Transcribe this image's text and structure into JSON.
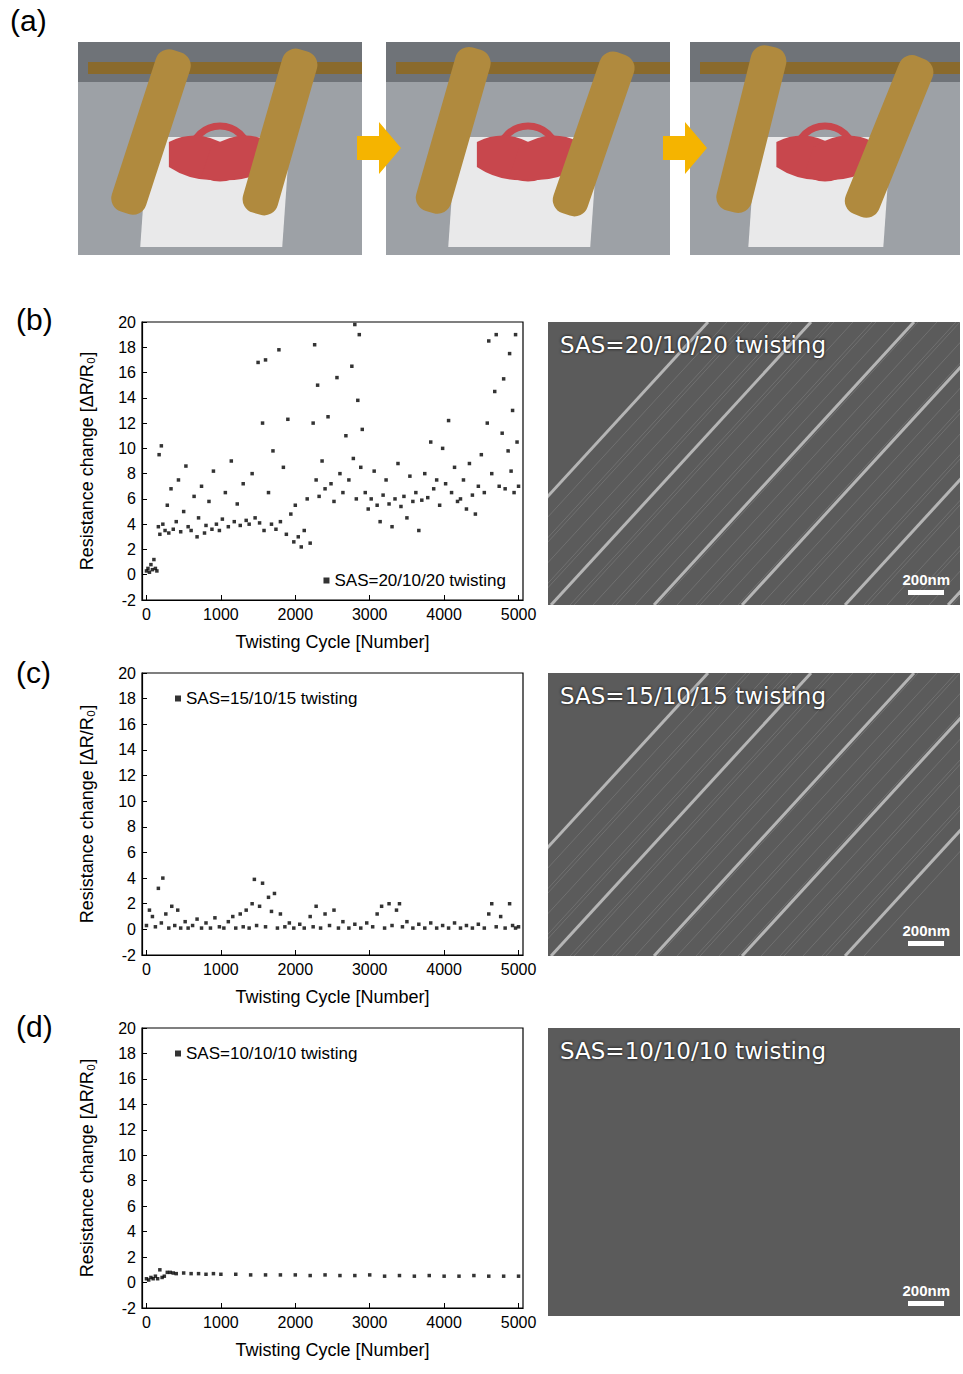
{
  "panel_labels": [
    "(a)",
    "(b)",
    "(c)",
    "(d)"
  ],
  "sem_images": [
    {
      "caption": "SAS=20/10/20 twisting",
      "scale_bar": "200nm"
    },
    {
      "caption": "SAS=15/10/15 twisting",
      "scale_bar": "200nm"
    },
    {
      "caption": "SAS=10/10/10 twisting",
      "scale_bar": "200nm"
    }
  ],
  "chart_data": [
    {
      "type": "scatter",
      "x_label": "Twisting Cycle [Number]",
      "y_label": "Resistance change [ΔR/R₀]",
      "xlim": [
        -60,
        5060
      ],
      "xticks": [
        0,
        1000,
        2000,
        3000,
        4000,
        5000
      ],
      "ylim": [
        -2,
        20
      ],
      "yticks": [
        -2,
        0,
        2,
        4,
        6,
        8,
        10,
        12,
        14,
        16,
        18,
        20
      ],
      "grid": false,
      "legend": "lower right",
      "x": [
        0,
        20,
        40,
        60,
        80,
        100,
        120,
        140,
        160,
        170,
        180,
        200,
        220,
        250,
        280,
        300,
        330,
        360,
        400,
        430,
        460,
        500,
        530,
        560,
        600,
        640,
        680,
        700,
        740,
        780,
        800,
        840,
        880,
        900,
        940,
        980,
        1020,
        1060,
        1100,
        1140,
        1180,
        1220,
        1260,
        1300,
        1340,
        1380,
        1420,
        1460,
        1500,
        1520,
        1560,
        1580,
        1600,
        1640,
        1680,
        1700,
        1740,
        1780,
        1800,
        1840,
        1880,
        1900,
        1940,
        1980,
        2000,
        2040,
        2080,
        2120,
        2160,
        2200,
        2240,
        2260,
        2280,
        2300,
        2320,
        2360,
        2400,
        2440,
        2480,
        2520,
        2560,
        2600,
        2640,
        2680,
        2720,
        2760,
        2780,
        2800,
        2820,
        2840,
        2860,
        2880,
        2900,
        2940,
        2980,
        3020,
        3060,
        3100,
        3140,
        3180,
        3220,
        3260,
        3300,
        3340,
        3380,
        3420,
        3460,
        3500,
        3540,
        3580,
        3620,
        3660,
        3700,
        3740,
        3780,
        3820,
        3860,
        3900,
        3940,
        3980,
        4020,
        4060,
        4100,
        4140,
        4180,
        4220,
        4260,
        4300,
        4340,
        4380,
        4420,
        4460,
        4500,
        4540,
        4580,
        4600,
        4640,
        4680,
        4700,
        4740,
        4780,
        4800,
        4820,
        4860,
        4880,
        4900,
        4920,
        4940,
        4960,
        4980,
        5000
      ],
      "series": [
        {
          "name": "SAS=20/10/20 twisting",
          "color": "#000000",
          "marker": "square",
          "values": [
            0.3,
            0.5,
            0.2,
            0.8,
            0.4,
            1.2,
            0.5,
            0.3,
            3.8,
            9.5,
            3.2,
            10.2,
            4.0,
            3.5,
            5.5,
            3.3,
            6.8,
            3.6,
            4.2,
            7.5,
            3.4,
            5.0,
            8.6,
            3.8,
            3.5,
            6.2,
            3.0,
            4.5,
            7.0,
            3.3,
            3.9,
            5.8,
            3.6,
            8.2,
            4.0,
            3.5,
            4.4,
            6.5,
            3.8,
            9.0,
            4.2,
            5.6,
            3.9,
            7.2,
            4.3,
            4.0,
            8.0,
            4.5,
            16.8,
            4.1,
            12.0,
            3.5,
            17.0,
            6.5,
            4.0,
            9.8,
            3.6,
            17.8,
            4.2,
            8.5,
            3.2,
            12.3,
            4.8,
            2.6,
            5.5,
            3.0,
            2.2,
            3.5,
            6.0,
            2.5,
            12.0,
            18.2,
            7.5,
            15.0,
            6.2,
            9.0,
            6.8,
            12.5,
            7.2,
            5.8,
            15.6,
            8.0,
            6.5,
            11.0,
            7.5,
            16.5,
            9.2,
            19.8,
            6.0,
            13.8,
            19.0,
            8.5,
            11.5,
            6.5,
            5.2,
            6.0,
            8.2,
            5.5,
            4.2,
            6.3,
            7.5,
            5.6,
            3.8,
            6.0,
            8.8,
            5.4,
            6.2,
            4.5,
            7.8,
            5.8,
            6.5,
            3.5,
            5.9,
            8.0,
            6.1,
            10.5,
            6.8,
            7.5,
            5.5,
            10.0,
            7.2,
            12.2,
            6.5,
            8.5,
            5.8,
            6.0,
            7.5,
            5.2,
            8.8,
            6.3,
            4.8,
            7.0,
            9.5,
            6.5,
            12.0,
            18.5,
            8.0,
            14.5,
            19.0,
            7.0,
            11.2,
            15.5,
            6.8,
            9.8,
            17.5,
            8.2,
            13.0,
            6.5,
            19.0,
            10.5,
            7.0
          ]
        }
      ]
    },
    {
      "type": "scatter",
      "x_label": "Twisting Cycle [Number]",
      "y_label": "Resistance change [ΔR/R₀]",
      "xlim": [
        -60,
        5060
      ],
      "xticks": [
        0,
        1000,
        2000,
        3000,
        4000,
        5000
      ],
      "ylim": [
        -2,
        20
      ],
      "yticks": [
        -2,
        0,
        2,
        4,
        6,
        8,
        10,
        12,
        14,
        16,
        18,
        20
      ],
      "grid": false,
      "legend": "upper left",
      "x": [
        0,
        40,
        80,
        120,
        160,
        200,
        220,
        260,
        300,
        340,
        380,
        420,
        460,
        520,
        560,
        620,
        680,
        740,
        800,
        860,
        920,
        980,
        1040,
        1100,
        1160,
        1200,
        1260,
        1300,
        1340,
        1380,
        1420,
        1450,
        1480,
        1520,
        1560,
        1600,
        1640,
        1680,
        1720,
        1760,
        1800,
        1860,
        1920,
        1980,
        2060,
        2120,
        2200,
        2240,
        2280,
        2340,
        2400,
        2460,
        2520,
        2580,
        2640,
        2720,
        2800,
        2880,
        2960,
        3040,
        3100,
        3160,
        3200,
        3260,
        3300,
        3360,
        3400,
        3440,
        3500,
        3580,
        3660,
        3740,
        3820,
        3900,
        3980,
        4060,
        4140,
        4220,
        4300,
        4380,
        4460,
        4540,
        4600,
        4640,
        4700,
        4760,
        4820,
        4880,
        4920,
        4960,
        5000
      ],
      "series": [
        {
          "name": "SAS=15/10/15 twisting",
          "color": "#000000",
          "marker": "square",
          "values": [
            0.3,
            1.5,
            1.0,
            0.2,
            3.2,
            0.5,
            4.0,
            1.2,
            0.1,
            1.8,
            0.3,
            1.5,
            0.1,
            0.6,
            0.1,
            0.3,
            0.8,
            0.1,
            0.5,
            0.1,
            0.9,
            0.2,
            0.1,
            0.6,
            1.0,
            0.1,
            1.2,
            0.2,
            1.5,
            0.1,
            2.0,
            3.9,
            0.3,
            1.8,
            3.6,
            0.2,
            2.5,
            1.4,
            2.8,
            0.1,
            1.2,
            0.2,
            0.5,
            0.1,
            0.4,
            0.1,
            1.0,
            0.2,
            1.8,
            0.1,
            1.2,
            0.3,
            1.5,
            0.1,
            0.6,
            0.1,
            0.4,
            0.1,
            0.5,
            0.2,
            1.2,
            1.8,
            0.1,
            2.0,
            0.3,
            1.5,
            2.0,
            0.2,
            0.6,
            0.1,
            0.4,
            0.1,
            0.5,
            0.1,
            0.3,
            0.1,
            0.5,
            0.1,
            0.3,
            0.1,
            0.4,
            0.1,
            1.2,
            2.0,
            0.2,
            1.0,
            0.1,
            2.0,
            0.3,
            0.1,
            0.2
          ]
        }
      ]
    },
    {
      "type": "scatter",
      "x_label": "Twisting Cycle [Number]",
      "y_label": "Resistance change [ΔR/R₀]",
      "xlim": [
        -60,
        5060
      ],
      "xticks": [
        0,
        1000,
        2000,
        3000,
        4000,
        5000
      ],
      "ylim": [
        -2,
        20
      ],
      "yticks": [
        -2,
        0,
        2,
        4,
        6,
        8,
        10,
        12,
        14,
        16,
        18,
        20
      ],
      "grid": false,
      "legend": "upper left",
      "x": [
        0,
        30,
        60,
        90,
        120,
        150,
        180,
        210,
        240,
        280,
        320,
        360,
        400,
        500,
        600,
        700,
        800,
        900,
        1000,
        1200,
        1400,
        1600,
        1800,
        2000,
        2200,
        2400,
        2600,
        2800,
        3000,
        3200,
        3400,
        3600,
        3800,
        4000,
        4200,
        4400,
        4600,
        4800,
        5000
      ],
      "series": [
        {
          "name": "SAS=10/10/10 twisting",
          "color": "#000000",
          "marker": "square",
          "values": [
            0.3,
            0.2,
            0.4,
            0.3,
            0.5,
            0.3,
            1.0,
            0.4,
            0.5,
            0.8,
            0.8,
            0.75,
            0.7,
            0.75,
            0.7,
            0.7,
            0.65,
            0.7,
            0.65,
            0.65,
            0.6,
            0.6,
            0.6,
            0.6,
            0.55,
            0.6,
            0.55,
            0.55,
            0.6,
            0.5,
            0.55,
            0.5,
            0.55,
            0.5,
            0.5,
            0.55,
            0.5,
            0.5,
            0.5
          ]
        }
      ]
    }
  ]
}
